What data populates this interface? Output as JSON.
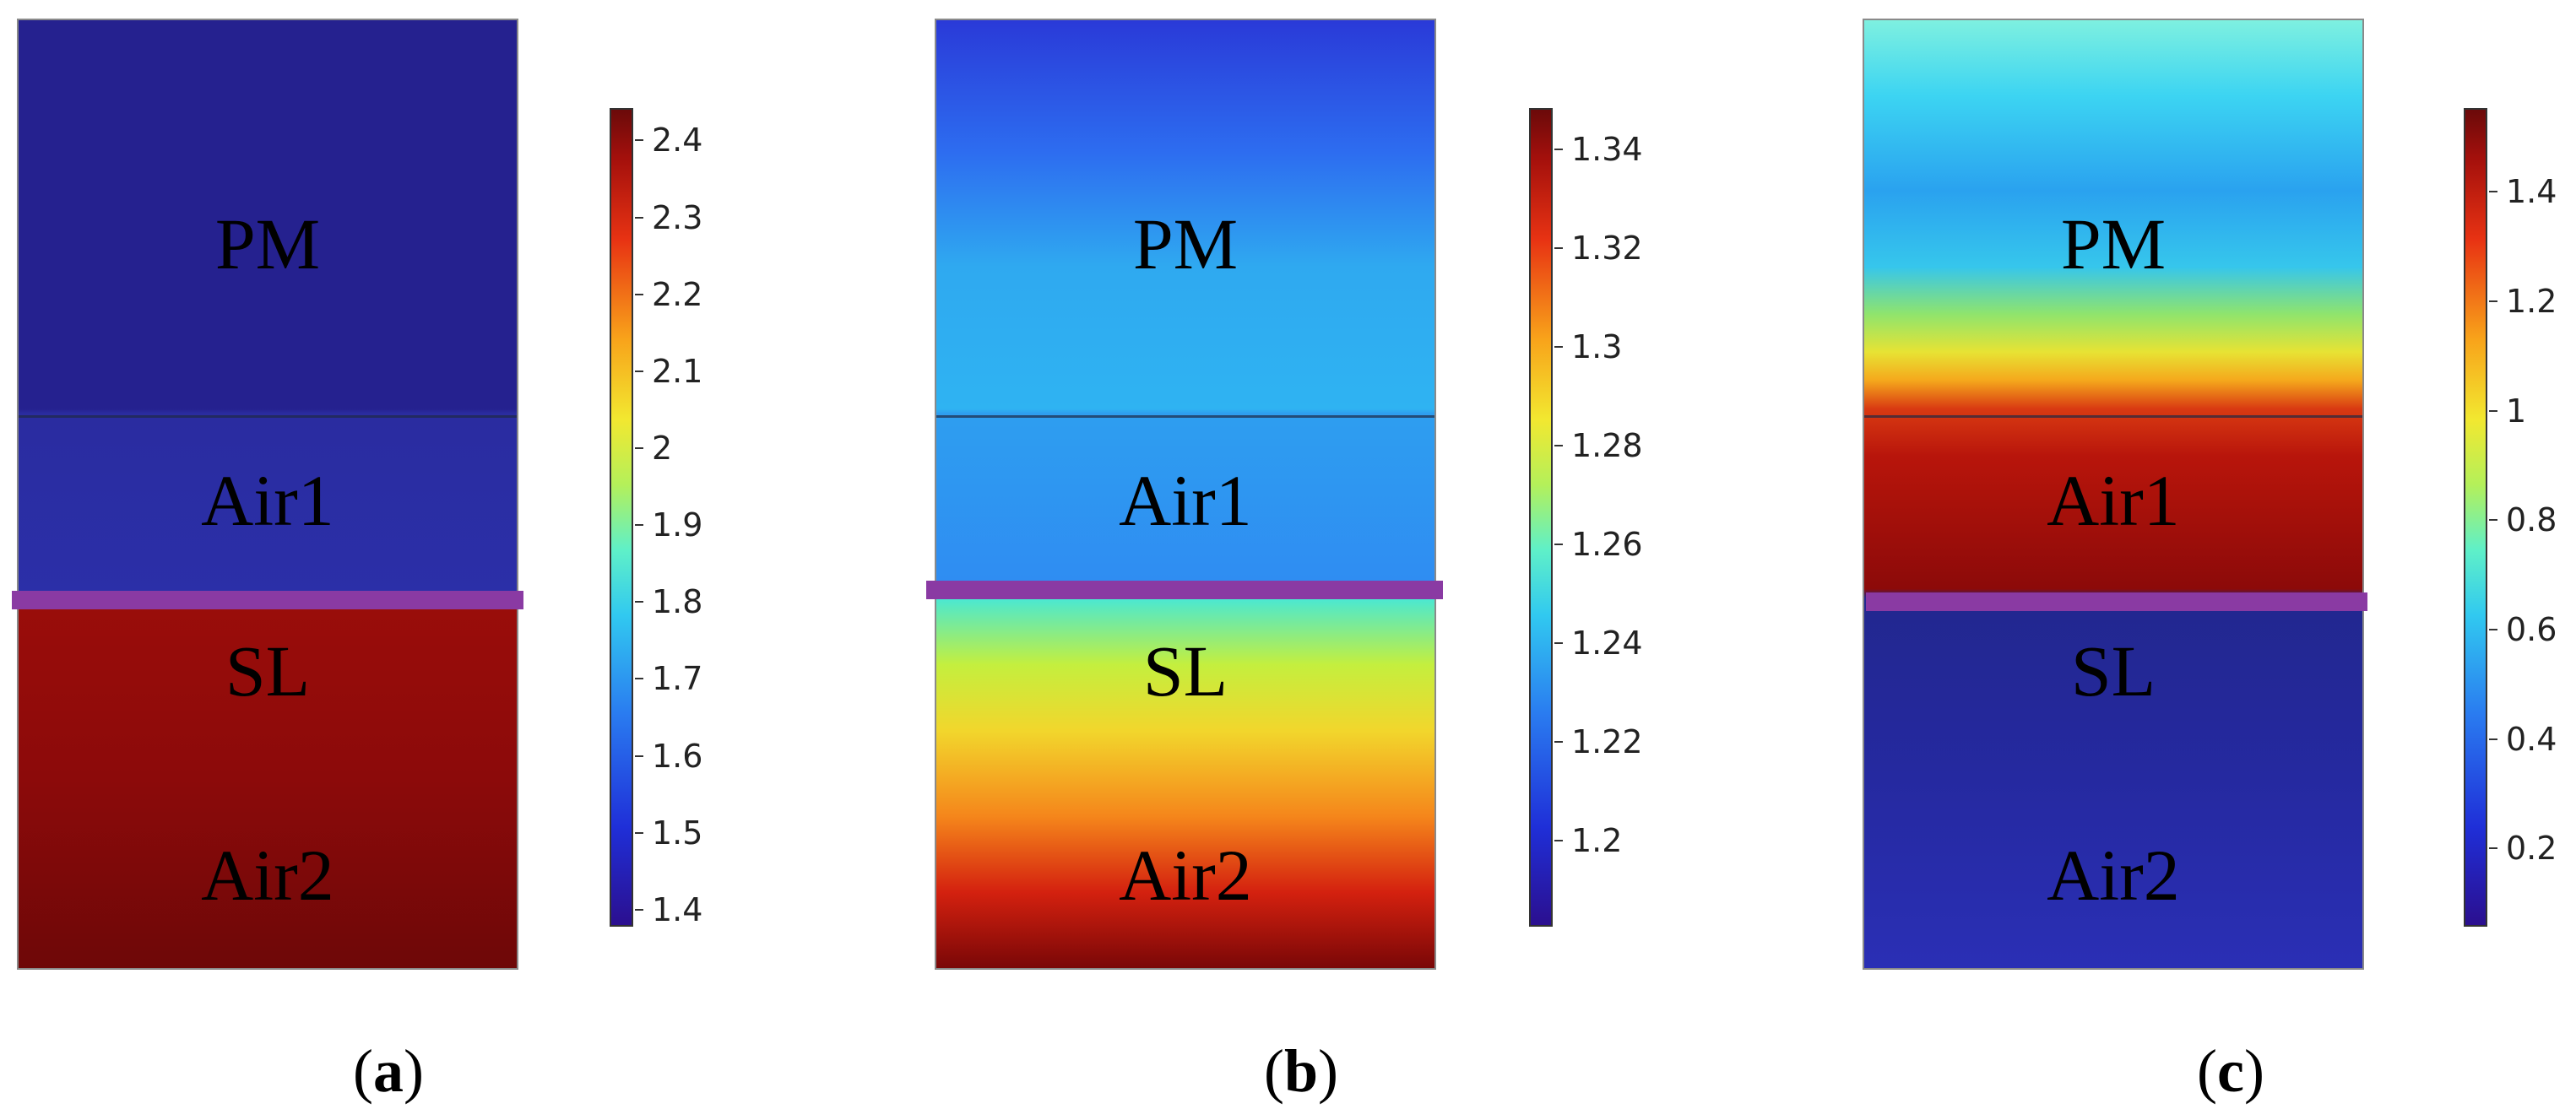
{
  "panels": [
    {
      "caption_open": "(",
      "caption_letter": "a",
      "caption_close": ")",
      "regions": {
        "pm": "PM",
        "air1": "Air1",
        "sl": "SL",
        "air2": "Air2"
      },
      "colorbar": {
        "min": 1.38,
        "max": 2.44,
        "ticks": [
          "1.4",
          "1.5",
          "1.6",
          "1.7",
          "1.8",
          "1.9",
          "2",
          "2.1",
          "2.2",
          "2.3",
          "2.4"
        ]
      }
    },
    {
      "caption_open": "(",
      "caption_letter": "b",
      "caption_close": ")",
      "regions": {
        "pm": "PM",
        "air1": "Air1",
        "sl": "SL",
        "air2": "Air2"
      },
      "colorbar": {
        "min": 1.183,
        "max": 1.348,
        "ticks": [
          "1.2",
          "1.22",
          "1.24",
          "1.26",
          "1.28",
          "1.3",
          "1.32",
          "1.34"
        ]
      }
    },
    {
      "caption_open": "(",
      "caption_letter": "c",
      "caption_close": ")",
      "regions": {
        "pm": "PM",
        "air1": "Air1",
        "sl": "SL",
        "air2": "Air2"
      },
      "colorbar": {
        "min": 0.06,
        "max": 1.55,
        "ticks": [
          "0.2",
          "0.4",
          "0.6",
          "0.8",
          "1",
          "1.2",
          "1.4"
        ]
      }
    }
  ]
}
